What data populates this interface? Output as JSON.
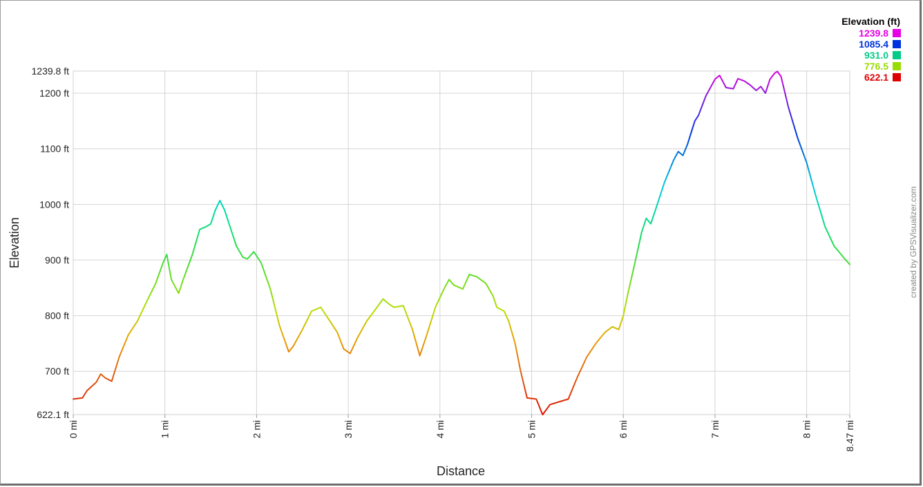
{
  "chart_data": {
    "type": "line",
    "xlabel": "Distance",
    "ylabel": "Elevation",
    "xlim": [
      0,
      8.47
    ],
    "ylim": [
      622.1,
      1239.8
    ],
    "x_unit": "mi",
    "y_unit": "ft",
    "x_ticks": [
      {
        "value": 0,
        "label": "0 mi"
      },
      {
        "value": 1,
        "label": "1 mi"
      },
      {
        "value": 2,
        "label": "2 mi"
      },
      {
        "value": 3,
        "label": "3 mi"
      },
      {
        "value": 4,
        "label": "4 mi"
      },
      {
        "value": 5,
        "label": "5 mi"
      },
      {
        "value": 6,
        "label": "6 mi"
      },
      {
        "value": 7,
        "label": "7 mi"
      },
      {
        "value": 8,
        "label": "8 mi"
      },
      {
        "value": 8.47,
        "label": "8.47 mi"
      }
    ],
    "y_ticks": [
      {
        "value": 622.1,
        "label": "622.1 ft"
      },
      {
        "value": 700,
        "label": "700 ft"
      },
      {
        "value": 800,
        "label": "800 ft"
      },
      {
        "value": 900,
        "label": "900 ft"
      },
      {
        "value": 1000,
        "label": "1000 ft"
      },
      {
        "value": 1100,
        "label": "1100 ft"
      },
      {
        "value": 1200,
        "label": "1200 ft"
      },
      {
        "value": 1239.8,
        "label": "1239.8 ft"
      }
    ],
    "grid": true,
    "legend": {
      "title": "Elevation (ft)",
      "placement": "top-right",
      "entries": [
        {
          "label": "1239.8",
          "color": "#e600e6"
        },
        {
          "label": "1085.4",
          "color": "#0033dd"
        },
        {
          "label": "931.0",
          "color": "#00cc88"
        },
        {
          "label": "776.5",
          "color": "#99dd00"
        },
        {
          "label": "622.1",
          "color": "#dd0000"
        }
      ]
    },
    "credit": "created by GPSVisualizer.com",
    "series": [
      {
        "x": [
          0.0,
          0.1,
          0.15,
          0.25,
          0.3,
          0.35,
          0.42,
          0.5,
          0.6,
          0.7,
          0.8,
          0.9,
          0.98,
          1.02,
          1.07,
          1.15,
          1.2,
          1.3,
          1.38,
          1.45,
          1.5,
          1.55,
          1.6,
          1.65,
          1.7,
          1.78,
          1.85,
          1.9,
          1.97,
          2.05,
          2.15,
          2.25,
          2.35,
          2.4,
          2.5,
          2.6,
          2.7,
          2.8,
          2.88,
          2.95,
          3.02,
          3.1,
          3.2,
          3.3,
          3.38,
          3.45,
          3.5,
          3.6,
          3.7,
          3.78,
          3.85,
          3.95,
          4.05,
          4.1,
          4.15,
          4.25,
          4.32,
          4.4,
          4.5,
          4.58,
          4.62,
          4.7,
          4.75,
          4.82,
          4.88,
          4.95,
          5.05,
          5.12,
          5.2,
          5.3,
          5.4,
          5.5,
          5.6,
          5.7,
          5.8,
          5.88,
          5.95,
          6.0,
          6.05,
          6.12,
          6.2,
          6.25,
          6.3,
          6.35,
          6.45,
          6.55,
          6.6,
          6.65,
          6.7,
          6.78,
          6.82,
          6.9,
          6.95,
          7.0,
          7.05,
          7.12,
          7.2,
          7.25,
          7.32,
          7.38,
          7.45,
          7.5,
          7.55,
          7.6,
          7.65,
          7.68,
          7.72,
          7.8,
          7.9,
          8.0,
          8.1,
          8.2,
          8.3,
          8.4,
          8.47
        ],
        "y": [
          650,
          652,
          665,
          680,
          695,
          688,
          682,
          725,
          765,
          790,
          825,
          858,
          895,
          910,
          865,
          840,
          865,
          910,
          955,
          960,
          965,
          990,
          1007,
          990,
          965,
          925,
          905,
          902,
          915,
          895,
          848,
          782,
          735,
          745,
          775,
          808,
          815,
          790,
          770,
          740,
          732,
          760,
          790,
          812,
          830,
          820,
          815,
          818,
          775,
          728,
          762,
          815,
          850,
          865,
          855,
          848,
          874,
          870,
          858,
          835,
          815,
          808,
          790,
          750,
          700,
          652,
          650,
          622,
          640,
          645,
          650,
          690,
          725,
          750,
          770,
          780,
          775,
          800,
          840,
          890,
          950,
          975,
          965,
          990,
          1040,
          1080,
          1095,
          1088,
          1108,
          1150,
          1160,
          1195,
          1210,
          1225,
          1232,
          1210,
          1208,
          1226,
          1222,
          1215,
          1205,
          1212,
          1200,
          1225,
          1236,
          1239,
          1230,
          1175,
          1120,
          1075,
          1015,
          960,
          925,
          905,
          892
        ]
      }
    ]
  }
}
